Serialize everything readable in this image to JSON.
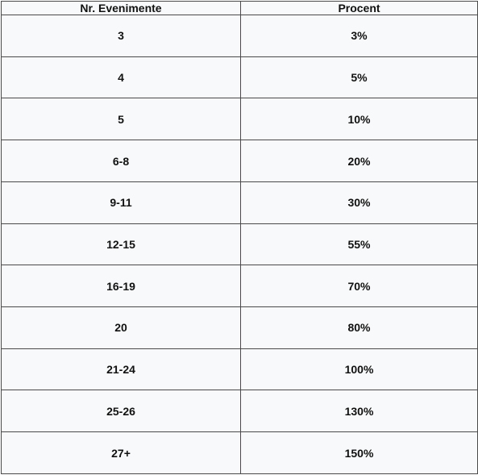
{
  "table": {
    "headers": [
      "Nr. Evenimente",
      "Procent"
    ],
    "rows": [
      [
        "3",
        "3%"
      ],
      [
        "4",
        "5%"
      ],
      [
        "5",
        "10%"
      ],
      [
        "6-8",
        "20%"
      ],
      [
        "9-11",
        "30%"
      ],
      [
        "12-15",
        "55%"
      ],
      [
        "16-19",
        "70%"
      ],
      [
        "20",
        "80%"
      ],
      [
        "21-24",
        "100%"
      ],
      [
        "25-26",
        "130%"
      ],
      [
        "27+",
        "150%"
      ]
    ]
  }
}
